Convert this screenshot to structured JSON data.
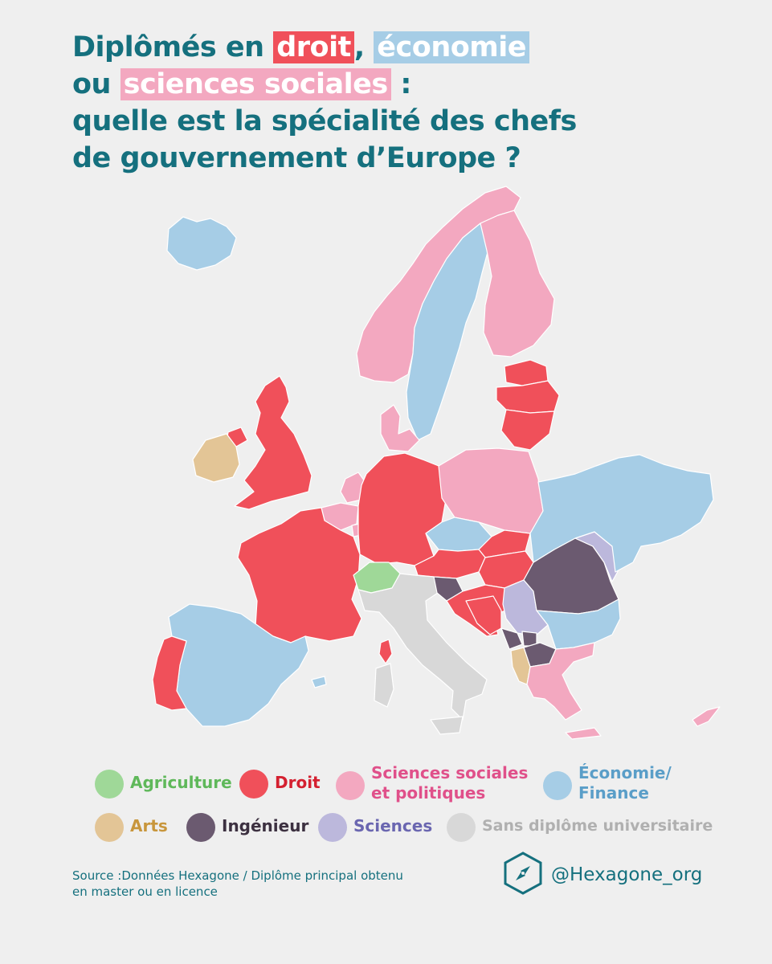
{
  "title": {
    "line1_pre": "Diplômés en ",
    "line1_droit": "droit",
    "line1_comma": ",",
    "line1_economie": "économie",
    "line2_pre": "ou ",
    "line2_sciences": "sciences sociales",
    "line2_post": " :",
    "line3": "quelle est la spécialité des chefs",
    "line4": "de gouvernement d’Europe ?"
  },
  "colors": {
    "agriculture": "#9fd898",
    "droit": "#f0505a",
    "sciences_sociales": "#f3a8c0",
    "economie": "#a6cde6",
    "arts": "#e3c596",
    "ingenieur": "#6b5a70",
    "sciences": "#bcb8dc",
    "sans_diplome": "#d8d8d8",
    "title": "#15707e"
  },
  "legend": [
    {
      "key": "agriculture",
      "label": "Agriculture",
      "dot": "#9fd898",
      "text_color": "#5fb85a"
    },
    {
      "key": "droit",
      "label": "Droit",
      "dot": "#f0505a",
      "text_color": "#d42030"
    },
    {
      "key": "sciences_sociales",
      "label": "Sciences sociales\net politiques",
      "dot": "#f3a8c0",
      "text_color": "#e0508a"
    },
    {
      "key": "economie",
      "label": "Économie/\nFinance",
      "dot": "#a6cde6",
      "text_color": "#5a9ec8"
    },
    {
      "key": "arts",
      "label": "Arts",
      "dot": "#e3c596",
      "text_color": "#c8963c"
    },
    {
      "key": "ingenieur",
      "label": "Ingénieur",
      "dot": "#6b5a70",
      "text_color": "#3c3040"
    },
    {
      "key": "sciences",
      "label": "Sciences",
      "dot": "#bcb8dc",
      "text_color": "#6a66b0"
    },
    {
      "key": "sans_diplome",
      "label": "Sans diplôme universitaire",
      "dot": "#d8d8d8",
      "text_color": "#b0b0b0"
    }
  ],
  "source": "Source :Données Hexagone / Diplôme principal obtenu\nen master ou en licence",
  "brand": {
    "handle": "@Hexagone_org",
    "icon": "hexagone-compass-logo-icon"
  }
}
